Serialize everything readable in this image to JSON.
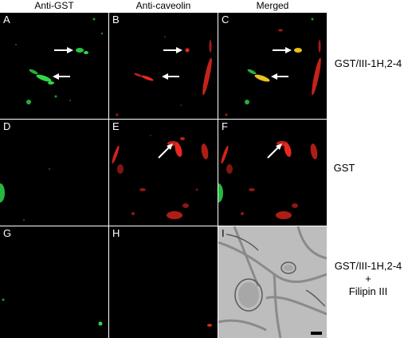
{
  "columns": [
    "Anti-GST",
    "Anti-caveolin",
    "Merged"
  ],
  "rows": [
    {
      "label_lines": [
        "GST/III-1H,2-4"
      ]
    },
    {
      "label_lines": [
        "GST"
      ]
    },
    {
      "label_lines": [
        "GST/III-1H,2-4",
        "+",
        "Filipin III"
      ]
    }
  ],
  "panels": [
    "A",
    "B",
    "C",
    "D",
    "E",
    "F",
    "G",
    "H",
    "I"
  ],
  "colors": {
    "gst_signal": "#2fd84a",
    "caveolin_signal": "#e8281e",
    "colocalized": "#e8c21e",
    "background": "#000000",
    "brightfield": "#b9b9b9"
  }
}
